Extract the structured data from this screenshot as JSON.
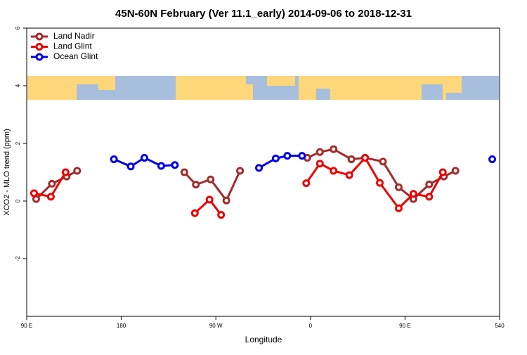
{
  "chart_data": {
    "type": "line",
    "title": "45N-60N February (Ver 11.1_early)   2014-09-06 to 2018-12-31",
    "x_label": "Longitude",
    "y_label": "XCO2 - MLO trend (ppm)",
    "xlim": [
      90,
      540
    ],
    "ylim": [
      -4,
      6
    ],
    "xticks": [
      {
        "value": 90,
        "label": "90 E"
      },
      180,
      {
        "value": 270,
        "label": "90 W"
      },
      {
        "value": 360,
        "label": "0"
      },
      {
        "value": 450,
        "label": "90 E"
      },
      540
    ],
    "yticks": [
      -2,
      0,
      2,
      4,
      6
    ],
    "legend": "top-left",
    "series": [
      {
        "name": "Land Nadir",
        "color": "#a52a2a",
        "x": [
          99,
          114,
          128,
          138,
          null,
          240,
          251,
          265,
          280,
          293,
          null,
          357,
          369,
          382,
          399,
          412,
          429,
          444,
          458,
          473,
          487,
          498
        ],
        "values": [
          0.07,
          0.6,
          0.85,
          1.05,
          null,
          1.0,
          0.57,
          0.75,
          0.02,
          1.05,
          null,
          1.5,
          1.7,
          1.8,
          1.45,
          1.5,
          1.37,
          0.48,
          0.07,
          0.58,
          0.85,
          1.05
        ]
      },
      {
        "name": "Land Glint",
        "color": "#ee0000",
        "x": [
          97,
          113,
          127,
          null,
          250,
          264,
          275,
          null,
          356,
          369,
          382,
          397,
          412,
          426,
          444,
          458,
          473,
          486
        ],
        "values": [
          0.27,
          0.15,
          1.0,
          null,
          -0.42,
          0.05,
          -0.48,
          null,
          0.62,
          1.3,
          1.05,
          0.9,
          1.5,
          0.63,
          -0.25,
          0.25,
          0.15,
          1.0
        ]
      },
      {
        "name": "Ocean Glint",
        "color": "#0000ee",
        "x": [
          173,
          189,
          202,
          218,
          231,
          null,
          311,
          327,
          338,
          352,
          null,
          533
        ],
        "values": [
          1.45,
          1.2,
          1.5,
          1.22,
          1.25,
          null,
          1.15,
          1.48,
          1.57,
          1.57,
          null,
          1.45
        ]
      }
    ]
  }
}
